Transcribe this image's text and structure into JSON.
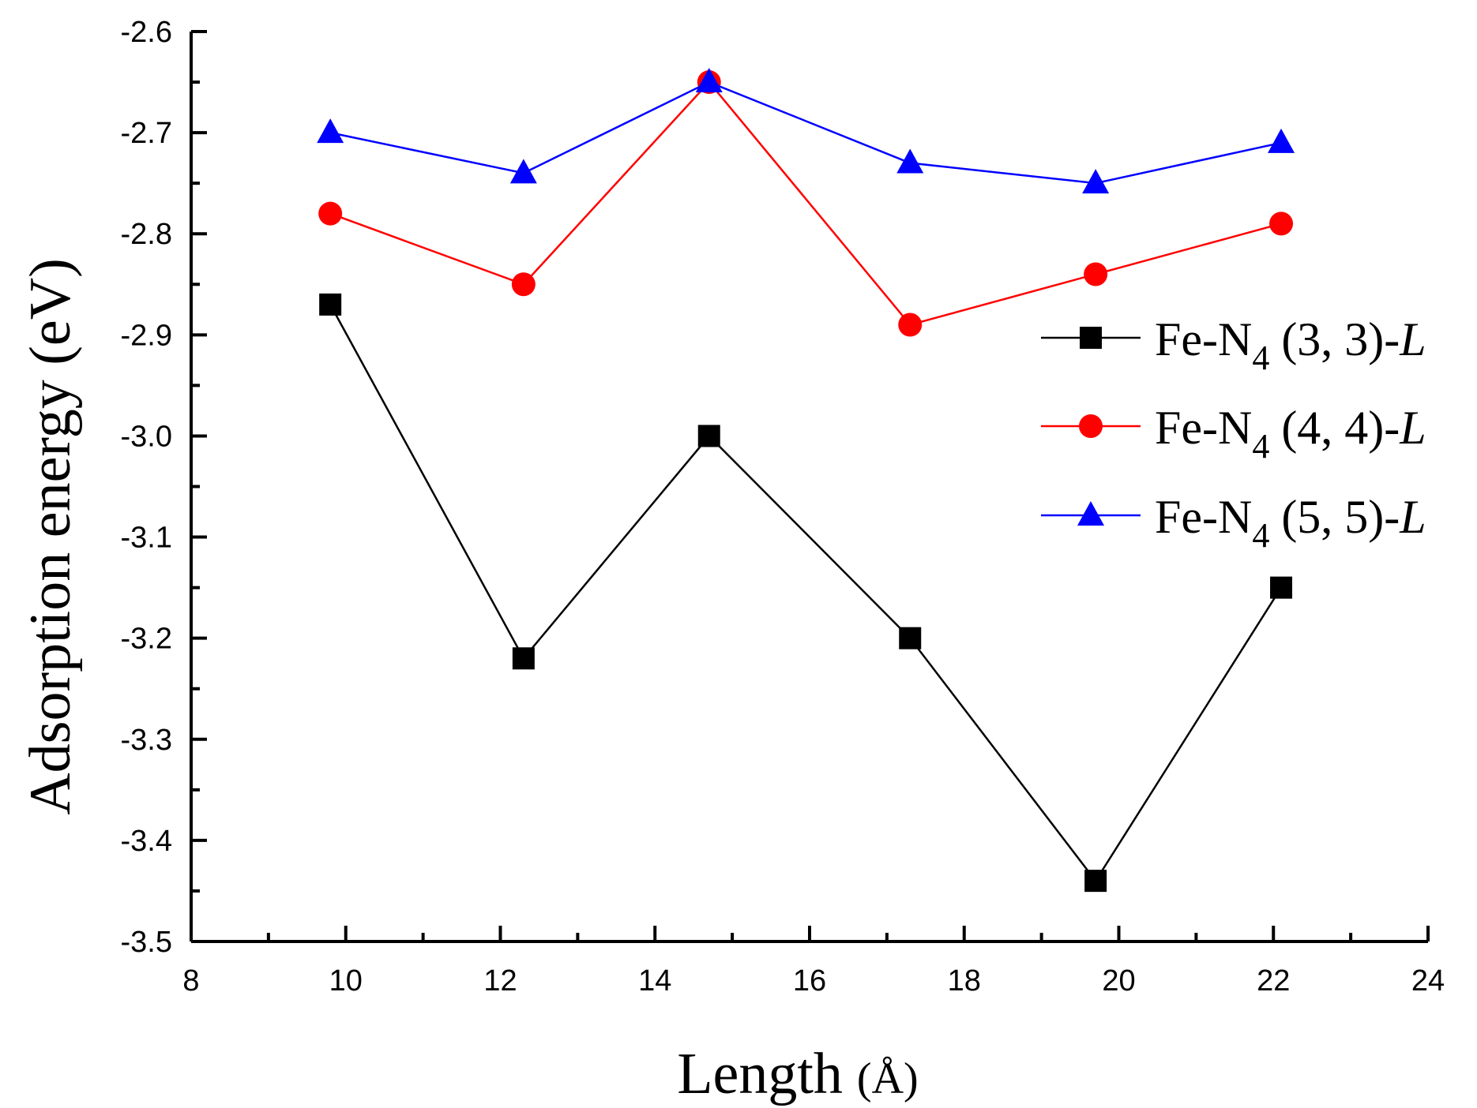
{
  "chart_data": {
    "type": "line",
    "title": "",
    "xlabel": "Length (Å)",
    "xlabel_main": "Length",
    "xlabel_unit": "(Å)",
    "ylabel": "Adsorption energy (eV)",
    "xlim": [
      8,
      24
    ],
    "ylim": [
      -3.5,
      -2.6
    ],
    "xticks": [
      8,
      10,
      12,
      14,
      16,
      18,
      20,
      22,
      24
    ],
    "xtick_labels": [
      "8",
      "10",
      "12",
      "14",
      "16",
      "18",
      "20",
      "22",
      "24"
    ],
    "yticks": [
      -3.5,
      -3.4,
      -3.3,
      -3.2,
      -3.1,
      -3.0,
      -2.9,
      -2.8,
      -2.7,
      -2.6
    ],
    "ytick_labels": [
      "-3.5",
      "-3.4",
      "-3.3",
      "-3.2",
      "-3.1",
      "-3.0",
      "-2.9",
      "-2.8",
      "-2.7",
      "-2.6"
    ],
    "grid": false,
    "legend_position": "right",
    "x": [
      9.8,
      12.3,
      14.7,
      17.3,
      19.7,
      22.1
    ],
    "series": [
      {
        "name": "Fe-N4 (3, 3)-L",
        "label_prefix": "Fe-N",
        "label_sub": "4",
        "label_mid": " (3, 3)-",
        "label_ital": "L",
        "color": "#000000",
        "marker": "square",
        "values": [
          -2.87,
          -3.22,
          -3.0,
          -3.2,
          -3.44,
          -3.15
        ]
      },
      {
        "name": "Fe-N4 (4, 4)-L",
        "label_prefix": "Fe-N",
        "label_sub": "4",
        "label_mid": " (4, 4)-",
        "label_ital": "L",
        "color": "#ff0000",
        "marker": "circle",
        "values": [
          -2.78,
          -2.85,
          -2.65,
          -2.89,
          -2.84,
          -2.79
        ]
      },
      {
        "name": "Fe-N4 (5, 5)-L",
        "label_prefix": "Fe-N",
        "label_sub": "4",
        "label_mid": " (5, 5)-",
        "label_ital": "L",
        "color": "#0000ff",
        "marker": "triangle",
        "values": [
          -2.7,
          -2.74,
          -2.65,
          -2.73,
          -2.75,
          -2.71
        ]
      }
    ]
  }
}
